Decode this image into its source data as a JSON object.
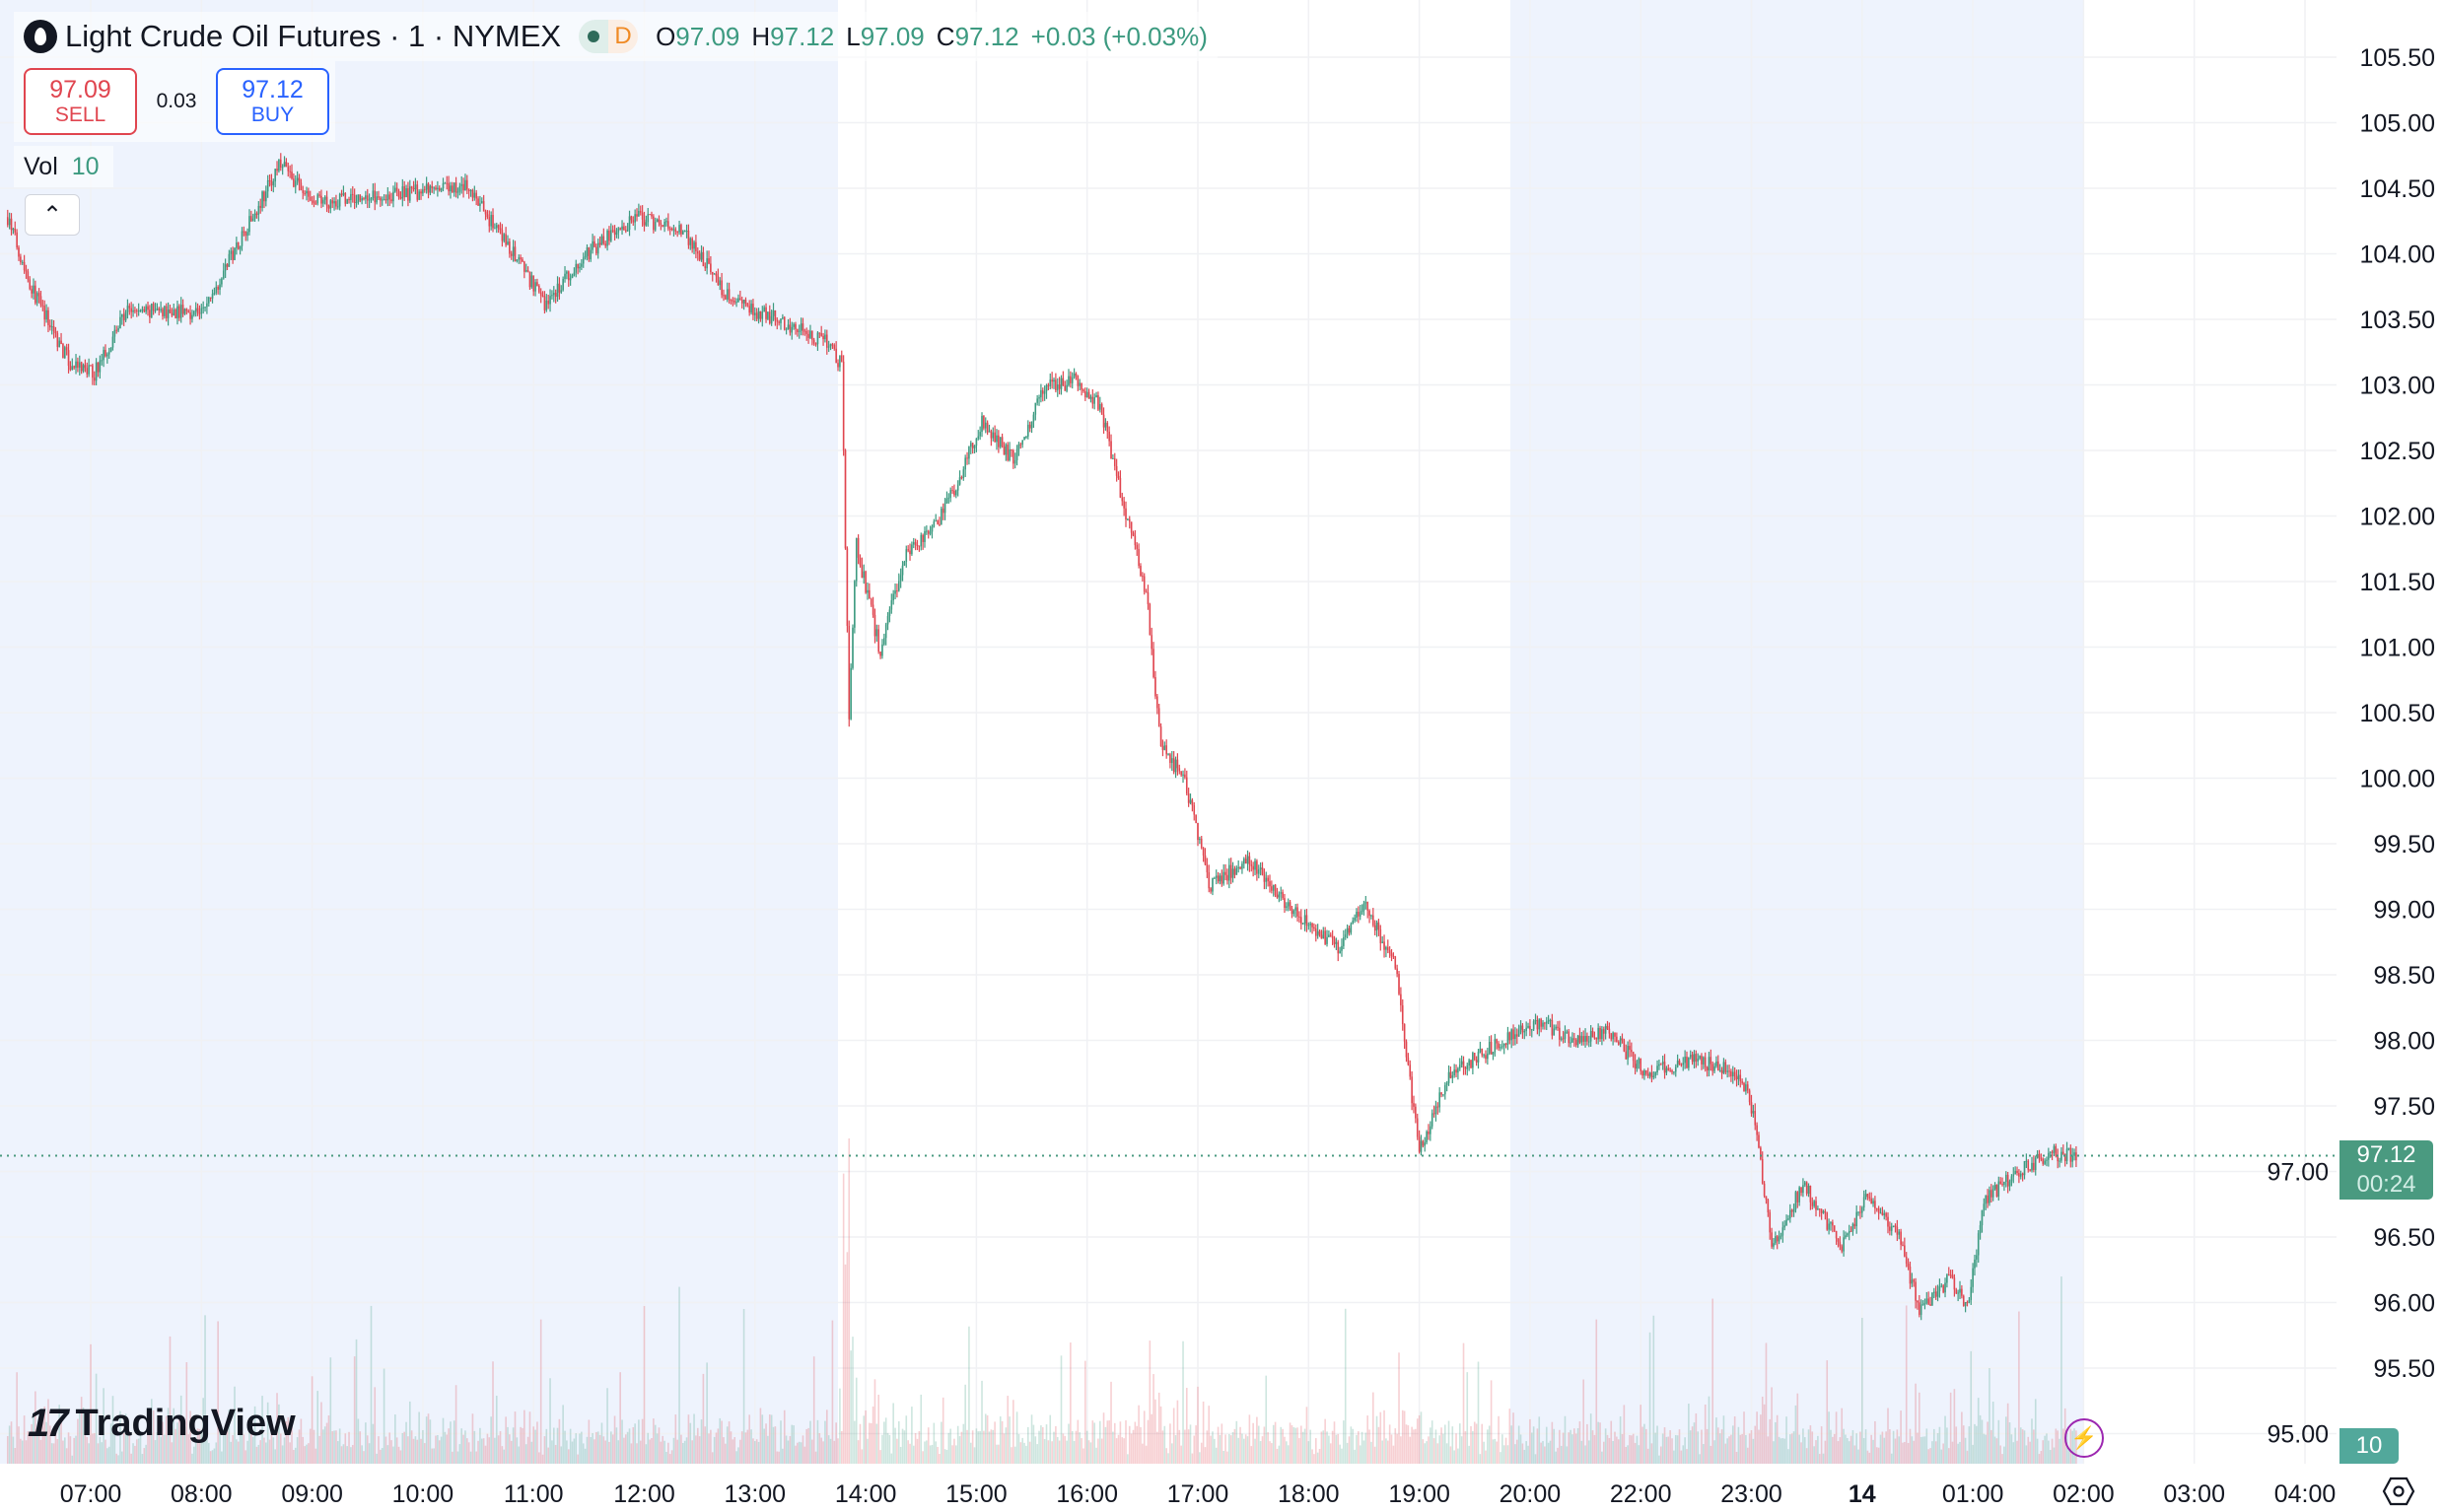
{
  "header": {
    "symbol": "Light Crude Oil Futures · 1 · NYMEX",
    "status_badge": "D",
    "ohlc": {
      "o_label": "O",
      "o": "97.09",
      "h_label": "H",
      "h": "97.12",
      "l_label": "L",
      "l": "97.09",
      "c_label": "C",
      "c": "97.12",
      "change": "+0.03 (+0.03%)"
    }
  },
  "trade": {
    "sell_price": "97.09",
    "sell_label": "SELL",
    "spread": "0.03",
    "buy_price": "97.12",
    "buy_label": "BUY"
  },
  "volume": {
    "label": "Vol",
    "value": "10"
  },
  "collapse_icon": "chevron-up",
  "logo": "TradingView",
  "price_tag": {
    "price": "97.12",
    "countdown": "00:24"
  },
  "volume_tag": "10",
  "colors": {
    "up": "#3c9a80",
    "down": "#e0454f",
    "session_shade": "#eef3fd",
    "price_line": "#4a9a80"
  },
  "chart_data": {
    "type": "candlestick",
    "interval": "1 minute",
    "y_ticks": [
      "105.50",
      "105.00",
      "104.50",
      "104.00",
      "103.50",
      "103.00",
      "102.50",
      "102.00",
      "101.50",
      "101.00",
      "100.50",
      "100.00",
      "99.50",
      "99.00",
      "98.50",
      "98.00",
      "97.50",
      "97.00",
      "96.50",
      "96.00",
      "95.50",
      "95.00"
    ],
    "x_ticks": [
      "07:00",
      "08:00",
      "09:00",
      "10:00",
      "11:00",
      "12:00",
      "13:00",
      "14:00",
      "15:00",
      "16:00",
      "17:00",
      "18:00",
      "19:00",
      "20:00",
      "22:00",
      "23:00",
      "14",
      "01:00",
      "02:00",
      "03:00",
      "04:00"
    ],
    "ylim": [
      95.0,
      105.5
    ],
    "grid": true,
    "last_price": 97.12,
    "extended_sessions": [
      [
        "06:15",
        "13:45"
      ],
      [
        "20:00",
        "02:00"
      ]
    ],
    "approx_close_path": [
      [
        "06:15",
        104.28
      ],
      [
        "06:28",
        103.74
      ],
      [
        "06:49",
        103.15
      ],
      [
        "07:02",
        103.09
      ],
      [
        "07:19",
        103.56
      ],
      [
        "08:01",
        103.56
      ],
      [
        "08:18",
        104.04
      ],
      [
        "08:43",
        104.69
      ],
      [
        "09:00",
        104.39
      ],
      [
        "09:42",
        104.45
      ],
      [
        "10:24",
        104.51
      ],
      [
        "10:50",
        103.98
      ],
      [
        "11:06",
        103.62
      ],
      [
        "11:32",
        104.04
      ],
      [
        "11:57",
        104.28
      ],
      [
        "12:22",
        104.16
      ],
      [
        "12:48",
        103.62
      ],
      [
        "13:13",
        103.5
      ],
      [
        "13:39",
        103.32
      ],
      [
        "13:47",
        103.15
      ],
      [
        "13:51",
        100.47
      ],
      [
        "13:55",
        101.78
      ],
      [
        "14:08",
        100.95
      ],
      [
        "14:20",
        101.66
      ],
      [
        "14:37",
        101.9
      ],
      [
        "14:50",
        102.25
      ],
      [
        "15:03",
        102.73
      ],
      [
        "15:20",
        102.43
      ],
      [
        "15:37",
        102.97
      ],
      [
        "15:54",
        103.03
      ],
      [
        "16:07",
        102.85
      ],
      [
        "16:19",
        102.13
      ],
      [
        "16:32",
        101.42
      ],
      [
        "16:40",
        100.23
      ],
      [
        "16:53",
        99.99
      ],
      [
        "17:06",
        99.16
      ],
      [
        "17:27",
        99.4
      ],
      [
        "17:52",
        98.98
      ],
      [
        "18:17",
        98.69
      ],
      [
        "18:30",
        99.04
      ],
      [
        "18:47",
        98.57
      ],
      [
        "18:51",
        98.09
      ],
      [
        "19:00",
        97.14
      ],
      [
        "19:16",
        97.74
      ],
      [
        "19:42",
        97.97
      ],
      [
        "20:07",
        98.15
      ],
      [
        "20:24",
        97.97
      ],
      [
        "20:41",
        98.09
      ],
      [
        "22:03",
        97.74
      ],
      [
        "22:28",
        97.86
      ],
      [
        "22:54",
        97.74
      ],
      [
        "23:02",
        97.38
      ],
      [
        "23:11",
        96.43
      ],
      [
        "23:28",
        96.9
      ],
      [
        "23:49",
        96.43
      ],
      [
        "00:02",
        96.78
      ],
      [
        "00:19",
        96.55
      ],
      [
        "00:31",
        95.95
      ],
      [
        "00:48",
        96.19
      ],
      [
        "00:57",
        95.95
      ],
      [
        "01:06",
        96.78
      ],
      [
        "01:27",
        97.02
      ],
      [
        "01:44",
        97.14
      ],
      [
        "01:56",
        97.12
      ]
    ]
  }
}
